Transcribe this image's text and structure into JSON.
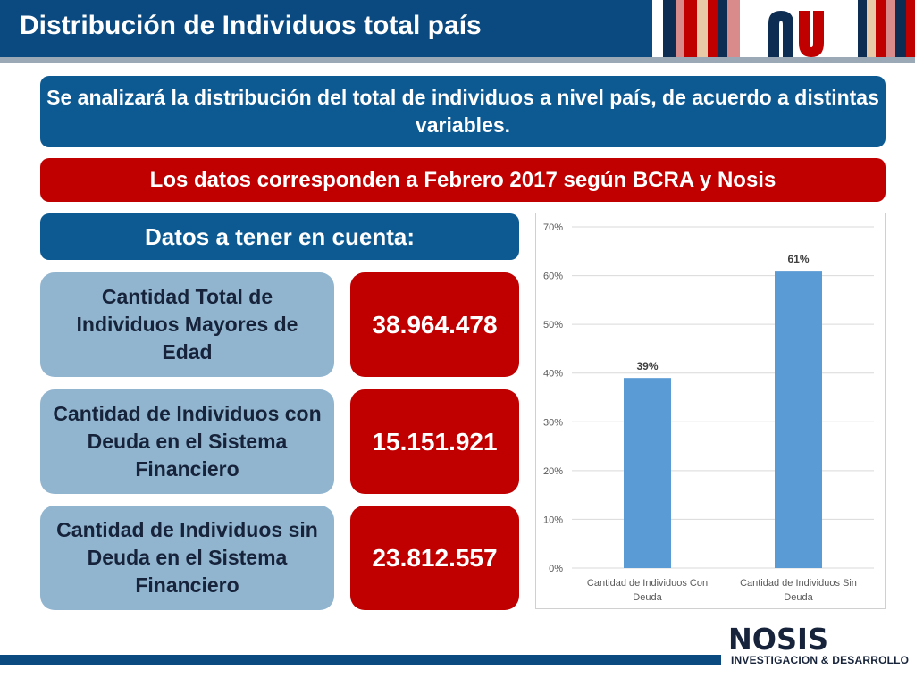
{
  "header": {
    "title": "Distribución de Individuos total país"
  },
  "banners": {
    "intro": "Se analizará la distribución del total de individuos a nivel país, de acuerdo a distintas variables.",
    "source": "Los datos corresponden a Febrero 2017 según BCRA y Nosis",
    "datos": "Datos a tener en cuenta:"
  },
  "stats": [
    {
      "label": "Cantidad Total de Individuos Mayores de Edad",
      "value": "38.964.478"
    },
    {
      "label": "Cantidad de Individuos con Deuda en el Sistema Financiero",
      "value": "15.151.921"
    },
    {
      "label": "Cantidad de Individuos sin Deuda en el Sistema Financiero",
      "value": "23.812.557"
    }
  ],
  "chart_data": {
    "type": "bar",
    "categories": [
      "Cantidad de Individuos Con Deuda",
      "Cantidad de Individuos Sin Deuda"
    ],
    "values": [
      0.39,
      0.61
    ],
    "data_labels": [
      "39%",
      "61%"
    ],
    "y_ticks": [
      0,
      0.1,
      0.2,
      0.3,
      0.4,
      0.5,
      0.6,
      0.7
    ],
    "y_tick_labels": [
      "0%",
      "10%",
      "20%",
      "30%",
      "40%",
      "50%",
      "60%",
      "70%"
    ],
    "ylim": [
      0,
      0.7
    ],
    "grid": true,
    "bar_color": "#5b9bd5",
    "title": "",
    "xlabel": "",
    "ylabel": ""
  },
  "footer": {
    "brand": "NOSIS",
    "subtitle": "INVESTIGACION & DESARROLLO"
  },
  "colors": {
    "navy": "#0a4a80",
    "blue": "#0d5a93",
    "red": "#c00000",
    "light_blue": "#92b5cf"
  },
  "logo": {
    "icon": "nosis-n-logo"
  }
}
